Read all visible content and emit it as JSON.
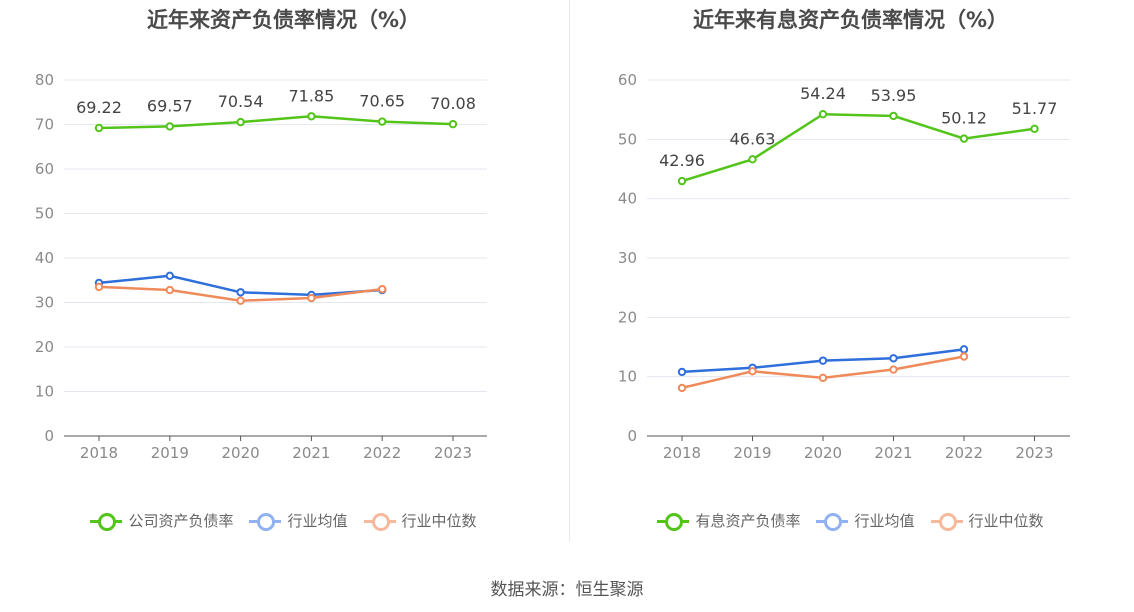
{
  "source": "数据来源：恒生聚源",
  "colors": {
    "main": "#52c41a",
    "avg": "#2f6fdb",
    "median": "#ef8a5a",
    "avg_legend": "#91b2f0",
    "median_legend": "#f7b99c",
    "grid": "#e3e7ee",
    "axis": "#555555"
  },
  "chart_data": [
    {
      "type": "line",
      "title": "近年来资产负债率情况（%）",
      "categories": [
        "2018",
        "2019",
        "2020",
        "2021",
        "2022",
        "2023"
      ],
      "ylim": [
        0,
        80
      ],
      "yticks": [
        "0",
        "10",
        "20",
        "30",
        "40",
        "50",
        "60",
        "70",
        "80"
      ],
      "grid": true,
      "legend_position": "bottom",
      "series": [
        {
          "name": "公司资产负债率",
          "color_key": "main",
          "values": [
            69.22,
            69.57,
            70.54,
            71.85,
            70.65,
            70.08
          ],
          "labels": [
            "69.22",
            "69.57",
            "70.54",
            "71.85",
            "70.65",
            "70.08"
          ]
        },
        {
          "name": "行业均值",
          "color_key": "avg",
          "values": [
            34.4,
            36.0,
            32.3,
            31.7,
            32.8,
            null
          ]
        },
        {
          "name": "行业中位数",
          "color_key": "median",
          "values": [
            33.5,
            32.8,
            30.4,
            31.0,
            33.0,
            null
          ]
        }
      ]
    },
    {
      "type": "line",
      "title": "近年来有息资产负债率情况（%）",
      "categories": [
        "2018",
        "2019",
        "2020",
        "2021",
        "2022",
        "2023"
      ],
      "ylim": [
        0,
        60
      ],
      "yticks": [
        "0",
        "10",
        "20",
        "30",
        "40",
        "50",
        "60"
      ],
      "grid": true,
      "legend_position": "bottom",
      "series": [
        {
          "name": "有息资产负债率",
          "color_key": "main",
          "values": [
            42.96,
            46.63,
            54.24,
            53.95,
            50.12,
            51.77
          ],
          "labels": [
            "42.96",
            "46.63",
            "54.24",
            "53.95",
            "50.12",
            "51.77"
          ]
        },
        {
          "name": "行业均值",
          "color_key": "avg",
          "values": [
            10.8,
            11.5,
            12.7,
            13.1,
            14.6,
            null
          ]
        },
        {
          "name": "行业中位数",
          "color_key": "median",
          "values": [
            8.1,
            10.9,
            9.8,
            11.2,
            13.4,
            null
          ]
        }
      ]
    }
  ]
}
